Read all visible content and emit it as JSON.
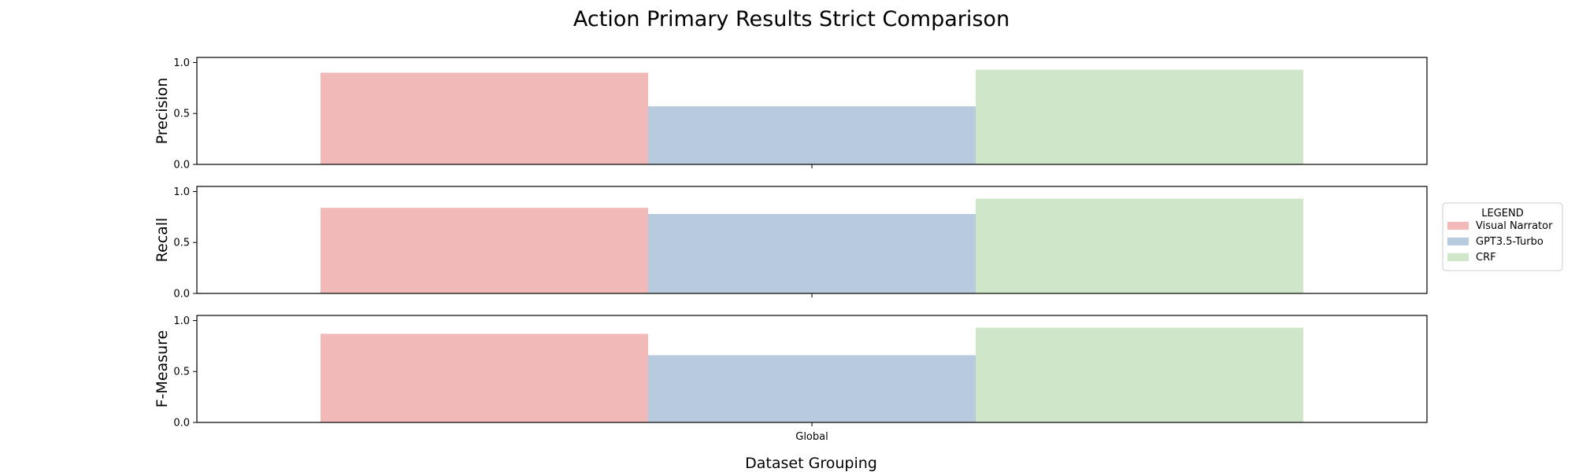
{
  "chart_data": {
    "type": "bar",
    "title": "Action Primary Results Strict Comparison",
    "xlabel": "Dataset Grouping",
    "categories": [
      "Global"
    ],
    "ylim": [
      0,
      1.05
    ],
    "yticks": [
      "0.0",
      "0.5",
      "1.0"
    ],
    "legend": {
      "title": "LEGEND",
      "placement": "right-center"
    },
    "panels": [
      {
        "ylabel": "Precision",
        "series": [
          {
            "name": "Visual Narrator",
            "values": [
              0.9
            ]
          },
          {
            "name": "GPT3.5-Turbo",
            "values": [
              0.57
            ]
          },
          {
            "name": "CRF",
            "values": [
              0.93
            ]
          }
        ]
      },
      {
        "ylabel": "Recall",
        "series": [
          {
            "name": "Visual Narrator",
            "values": [
              0.84
            ]
          },
          {
            "name": "GPT3.5-Turbo",
            "values": [
              0.78
            ]
          },
          {
            "name": "CRF",
            "values": [
              0.93
            ]
          }
        ]
      },
      {
        "ylabel": "F-Measure",
        "series": [
          {
            "name": "Visual Narrator",
            "values": [
              0.87
            ]
          },
          {
            "name": "GPT3.5-Turbo",
            "values": [
              0.66
            ]
          },
          {
            "name": "CRF",
            "values": [
              0.93
            ]
          }
        ]
      }
    ],
    "colors": [
      "#f1b9b8",
      "#b8cbde",
      "#cfe6c9"
    ]
  }
}
